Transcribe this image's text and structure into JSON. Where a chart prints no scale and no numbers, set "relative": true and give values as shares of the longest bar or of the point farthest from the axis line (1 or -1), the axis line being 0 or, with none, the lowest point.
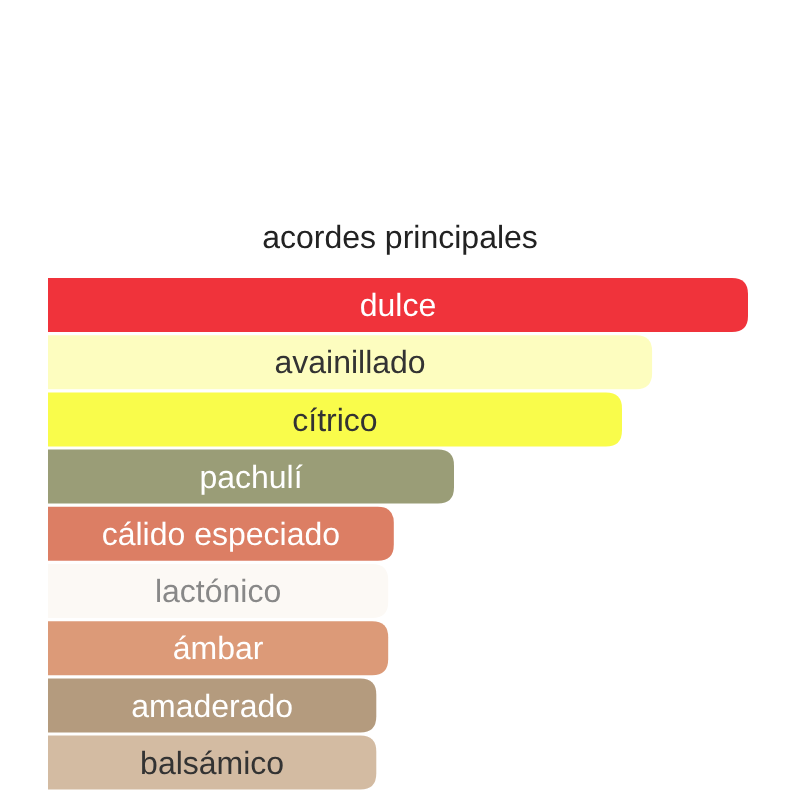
{
  "chart_data": {
    "type": "bar",
    "orientation": "horizontal",
    "relative": true,
    "title": "acordes principales",
    "categories": [
      "dulce",
      "avainillado",
      "cítrico",
      "pachulí",
      "cálido especiado",
      "lactónico",
      "ámbar",
      "amaderado",
      "balsámico"
    ],
    "values": [
      1,
      0.863,
      0.82,
      0.58,
      0.494,
      0.486,
      0.486,
      0.469,
      0.469
    ],
    "colors": [
      "#f0333b",
      "#fdfdbf",
      "#f9fc4b",
      "#9a9d77",
      "#dc7e64",
      "#fcf9f5",
      "#dc9a78",
      "#b49b7e",
      "#d3bba2"
    ]
  }
}
